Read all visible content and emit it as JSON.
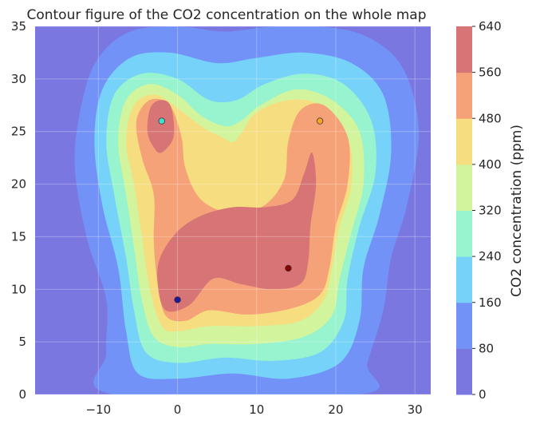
{
  "chart_data": {
    "type": "contour",
    "title": "Contour figure of the CO2 concentration on the whole map",
    "xlim": [
      -18,
      32
    ],
    "ylim": [
      0,
      35
    ],
    "xticks": [
      "−10",
      "0",
      "10",
      "20",
      "30"
    ],
    "xtick_values": [
      -10,
      0,
      10,
      20,
      30
    ],
    "yticks": [
      "0",
      "5",
      "10",
      "15",
      "20",
      "25",
      "30",
      "35"
    ],
    "ytick_values": [
      0,
      5,
      10,
      15,
      20,
      25,
      30,
      35
    ],
    "grid": true,
    "colorbar": {
      "label": "CO2 concentration (ppm)",
      "levels": [
        0,
        80,
        160,
        240,
        320,
        400,
        480,
        560,
        640
      ],
      "tick_labels": [
        "0",
        "80",
        "160",
        "240",
        "320",
        "400",
        "480",
        "560",
        "640"
      ],
      "colors": [
        "#7a78e0",
        "#7392f7",
        "#76d2f8",
        "#98f3cf",
        "#d2f49d",
        "#f6dd7f",
        "#f5a278",
        "#d77475"
      ]
    },
    "sources": [
      {
        "x": 0,
        "y": 9,
        "color": "#1a1aa0"
      },
      {
        "x": 14,
        "y": 12,
        "color": "#8b0000"
      },
      {
        "x": -2,
        "y": 26,
        "color": "#3ee0d0"
      },
      {
        "x": 18,
        "y": 26,
        "color": "#f5a623"
      }
    ]
  }
}
